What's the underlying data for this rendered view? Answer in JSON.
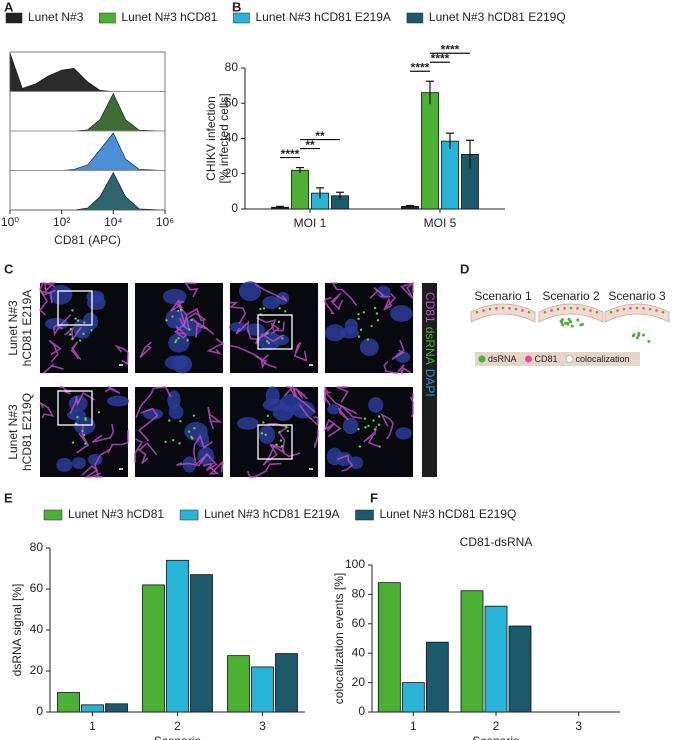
{
  "panel_labels": [
    "A",
    "B",
    "C",
    "D",
    "E",
    "F"
  ],
  "chart_data": [
    {
      "type": "ridgeline",
      "xlabel": "CD81 (APC)",
      "log_x": true,
      "xlim": [
        1,
        1000000
      ],
      "xticks": [
        {
          "value": 1,
          "label": "10⁰"
        },
        {
          "value": 100,
          "label": "10²"
        },
        {
          "value": 10000,
          "label": "10⁴"
        },
        {
          "value": 1000000,
          "label": "10⁶"
        }
      ],
      "ylim": [
        0,
        100
      ],
      "x": [
        1,
        3,
        10,
        30,
        100,
        300,
        1000,
        3000,
        10000,
        30000,
        100000,
        1000000
      ],
      "series": [
        {
          "color": "#2b2b2b",
          "values": [
            100,
            8,
            20,
            40,
            55,
            60,
            25,
            3,
            0,
            0,
            0,
            0
          ]
        },
        {
          "color": "#3f6b34",
          "values": [
            0,
            0,
            0,
            0,
            0,
            0,
            3,
            30,
            100,
            30,
            2,
            0
          ]
        },
        {
          "color": "#4b8fd6",
          "values": [
            0,
            0,
            0,
            0,
            0,
            3,
            15,
            55,
            100,
            30,
            3,
            0
          ]
        },
        {
          "color": "#2d6470",
          "values": [
            0,
            0,
            0,
            0,
            0,
            0,
            5,
            35,
            100,
            35,
            3,
            0
          ]
        }
      ]
    },
    {
      "type": "bar",
      "ylabel": [
        "CHIKV infection",
        "[% infected cells]"
      ],
      "categories": [
        "MOI 1",
        "MOI 5"
      ],
      "ylim": [
        0,
        80
      ],
      "yticks": [
        0,
        20,
        40,
        60,
        80
      ],
      "series": [
        {
          "name": "Lunet N#3",
          "color": "#222222",
          "values": [
            1,
            1.5
          ],
          "errors": [
            0.5,
            0.5
          ]
        },
        {
          "name": "Lunet N#3 hCD81",
          "color": "#4cb034",
          "values": [
            22,
            66
          ],
          "errors": [
            1.5,
            6.5
          ]
        },
        {
          "name": "Lunet N#3 hCD81 E219A",
          "color": "#27b4d6",
          "values": [
            9,
            38.5
          ],
          "errors": [
            3,
            4.5
          ]
        },
        {
          "name": "Lunet N#3 hCD81 E219Q",
          "color": "#1c5a6b",
          "values": [
            7.5,
            31
          ],
          "errors": [
            2,
            8
          ]
        }
      ],
      "significance": [
        {
          "label": "****",
          "category": 0,
          "pair": [
            0,
            1
          ]
        },
        {
          "label": "**",
          "category": 0,
          "pair": [
            1,
            2
          ]
        },
        {
          "label": "**",
          "category": 0,
          "pair": [
            1,
            3
          ]
        },
        {
          "label": "****",
          "category": 1,
          "pair": [
            0,
            1
          ]
        },
        {
          "label": "****",
          "category": 1,
          "pair": [
            1,
            2
          ]
        },
        {
          "label": "****",
          "category": 1,
          "pair": [
            1,
            3
          ]
        }
      ]
    },
    {
      "type": "bar",
      "ylabel": "dsRNA signal [%]",
      "xlabel": "Scenario",
      "categories": [
        "1",
        "2",
        "3"
      ],
      "ylim": [
        0,
        80
      ],
      "yticks": [
        0,
        20,
        40,
        60,
        80
      ],
      "series": [
        {
          "name": "Lunet N#3 hCD81",
          "color": "#4cb034",
          "values": [
            9.5,
            62,
            27.5
          ]
        },
        {
          "name": "Lunet N#3 hCD81 E219A",
          "color": "#27b4d6",
          "values": [
            3.5,
            74,
            22
          ]
        },
        {
          "name": "Lunet N#3 hCD81 E219Q",
          "color": "#1c5a6b",
          "values": [
            4,
            67,
            28.5
          ]
        }
      ]
    },
    {
      "type": "bar",
      "title": "CD81-dsRNA",
      "ylabel": "colocalization events [%]",
      "xlabel": "Scenario",
      "categories": [
        "1",
        "2",
        "3"
      ],
      "ylim": [
        0,
        100
      ],
      "yticks": [
        0,
        20,
        40,
        60,
        80,
        100
      ],
      "series": [
        {
          "color": "#4cb034",
          "values": [
            88,
            82.5,
            0
          ]
        },
        {
          "color": "#27b4d6",
          "values": [
            20,
            72,
            0
          ]
        },
        {
          "color": "#1c5a6b",
          "values": [
            47.5,
            58.5,
            0
          ]
        }
      ]
    }
  ],
  "microscopy": {
    "rows": [
      [
        "Lunet N#3",
        "hCD81 E219A"
      ],
      [
        "Lunet N#3",
        "hCD81 E219Q"
      ]
    ],
    "channels": [
      {
        "name": "CD81",
        "color": "#c24fc9"
      },
      {
        "name": "dsRNA",
        "color": "#4cb034"
      },
      {
        "name": "DAPI",
        "color": "#2f8fe0"
      }
    ]
  },
  "scenarios": {
    "labels": [
      "Scenario 1",
      "Scenario 2",
      "Scenario 3"
    ],
    "legend": [
      {
        "label": "dsRNA",
        "color": "#4cb034"
      },
      {
        "label": "CD81",
        "color": "#e0509a"
      },
      {
        "label": "colocalization",
        "color": "#ffffff"
      }
    ]
  }
}
